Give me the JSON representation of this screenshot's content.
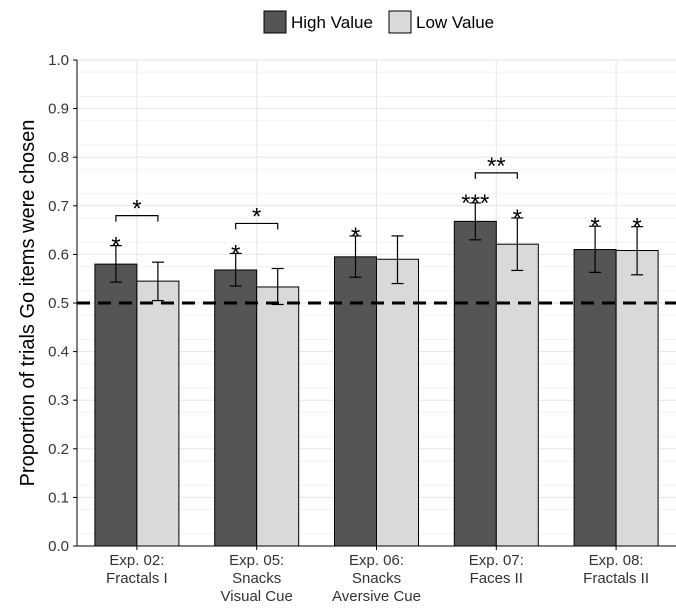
{
  "chart_data": {
    "type": "bar",
    "title": "",
    "xlabel": "",
    "ylabel": "Proportion of trials Go items were chosen",
    "ylim": [
      0.0,
      1.0
    ],
    "yticks": [
      "0.0",
      "0.1",
      "0.2",
      "0.3",
      "0.4",
      "0.5",
      "0.6",
      "0.7",
      "0.8",
      "0.9",
      "1.0"
    ],
    "grid": true,
    "legend_position": "top",
    "reference_line": 0.5,
    "categories": [
      [
        "Exp. 02:",
        "Fractals I"
      ],
      [
        "Exp. 05:",
        "Snacks",
        "Visual Cue"
      ],
      [
        "Exp. 06:",
        "Snacks",
        "Aversive Cue"
      ],
      [
        "Exp. 07:",
        "Faces II"
      ],
      [
        "Exp. 08:",
        "Fractals II"
      ]
    ],
    "series": [
      {
        "name": "High Value",
        "color": "#555555",
        "values": [
          0.58,
          0.568,
          0.595,
          0.668,
          0.61
        ],
        "error_low": [
          0.543,
          0.535,
          0.553,
          0.63,
          0.563
        ],
        "error_high": [
          0.618,
          0.602,
          0.638,
          0.706,
          0.658
        ],
        "significance": [
          "*",
          "*",
          "*",
          "***",
          "*"
        ]
      },
      {
        "name": "Low Value",
        "color": "#d9d9d9",
        "values": [
          0.545,
          0.533,
          0.59,
          0.621,
          0.608
        ],
        "error_low": [
          0.505,
          0.497,
          0.54,
          0.567,
          0.558
        ],
        "error_high": [
          0.584,
          0.571,
          0.638,
          0.675,
          0.657
        ],
        "significance": [
          "",
          "",
          "",
          "*",
          "*"
        ]
      }
    ],
    "pairwise_significance": [
      "*",
      "*",
      "",
      "**",
      ""
    ]
  }
}
